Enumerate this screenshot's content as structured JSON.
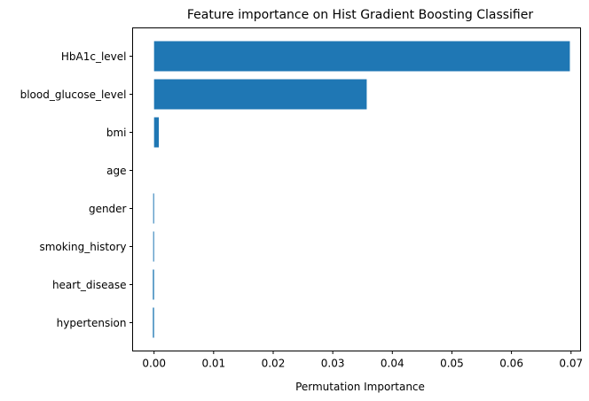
{
  "chart_data": {
    "type": "bar",
    "orientation": "horizontal",
    "title": "Feature importance on Hist Gradient Boosting Classifier",
    "xlabel": "Permutation Importance",
    "ylabel": "",
    "categories": [
      "HbA1c_level",
      "blood_glucose_level",
      "bmi",
      "age",
      "gender",
      "smoking_history",
      "heart_disease",
      "hypertension"
    ],
    "values": [
      0.0698,
      0.0357,
      0.0008,
      0.0,
      -0.0001,
      -0.0001,
      -0.0002,
      -0.0002
    ],
    "xlim": [
      -0.0036,
      0.0716
    ],
    "xticks": [
      0.0,
      0.01,
      0.02,
      0.03,
      0.04,
      0.05,
      0.06,
      0.07
    ],
    "xtick_labels": [
      "0.00",
      "0.01",
      "0.02",
      "0.03",
      "0.04",
      "0.05",
      "0.06",
      "0.07"
    ],
    "bar_color": "#1f77b4",
    "grid": false,
    "legend": "none"
  }
}
